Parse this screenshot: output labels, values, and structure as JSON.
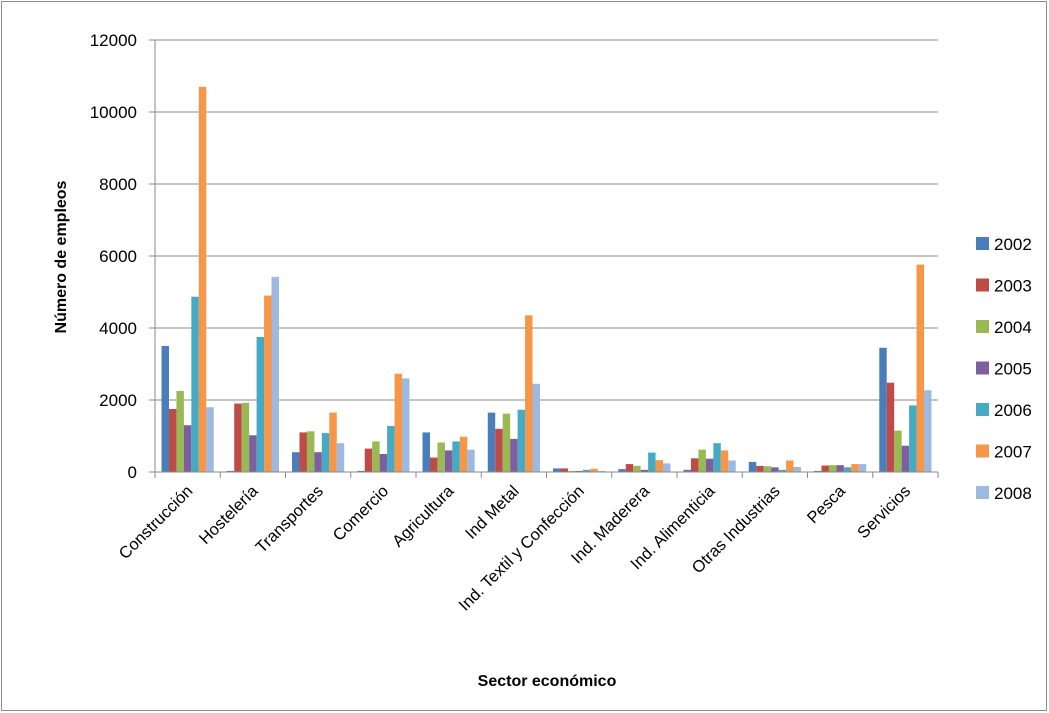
{
  "chart_data": {
    "type": "bar",
    "title": "",
    "xlabel": "Sector económico",
    "ylabel": "Número de empleos",
    "ylim": [
      0,
      12000
    ],
    "yticks": [
      0,
      2000,
      4000,
      6000,
      8000,
      10000,
      12000
    ],
    "grid": true,
    "legend_position": "right",
    "categories": [
      "Construcción",
      "Hostelería",
      "Transportes",
      "Comercio",
      "Agricultura",
      "Ind Metal",
      "Ind. Textil y Confección",
      "Ind. Maderera",
      "Ind. Alimenticia",
      "Otras Industrias",
      "Pesca",
      "Servicios"
    ],
    "series": [
      {
        "name": "2002",
        "color": "#4a7ebb",
        "values": [
          3500,
          30,
          550,
          30,
          1100,
          1650,
          100,
          80,
          60,
          280,
          30,
          3450
        ]
      },
      {
        "name": "2003",
        "color": "#be4b48",
        "values": [
          1750,
          1900,
          1100,
          650,
          400,
          1200,
          100,
          220,
          380,
          170,
          180,
          2480
        ]
      },
      {
        "name": "2004",
        "color": "#98b954",
        "values": [
          2250,
          1920,
          1130,
          850,
          820,
          1620,
          30,
          170,
          620,
          160,
          190,
          1150
        ]
      },
      {
        "name": "2005",
        "color": "#7d5fa0",
        "values": [
          1300,
          1020,
          550,
          500,
          600,
          920,
          30,
          60,
          370,
          130,
          190,
          730
        ]
      },
      {
        "name": "2006",
        "color": "#46aac5",
        "values": [
          4870,
          3750,
          1080,
          1280,
          850,
          1730,
          60,
          540,
          800,
          60,
          130,
          1850
        ]
      },
      {
        "name": "2007",
        "color": "#f79646",
        "values": [
          10700,
          4900,
          1650,
          2730,
          980,
          4350,
          90,
          330,
          600,
          320,
          220,
          5760
        ]
      },
      {
        "name": "2008",
        "color": "#9db9e0",
        "values": [
          1800,
          5420,
          800,
          2600,
          620,
          2450,
          30,
          240,
          320,
          140,
          220,
          2270
        ]
      }
    ]
  }
}
